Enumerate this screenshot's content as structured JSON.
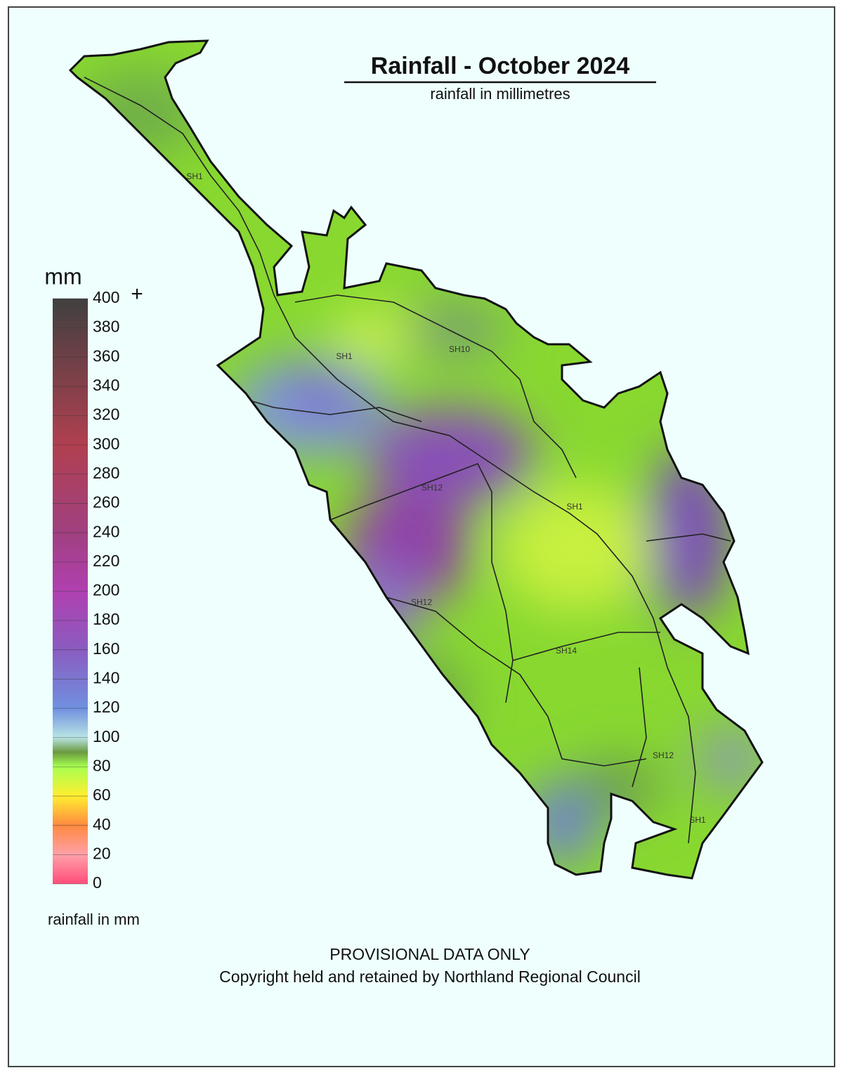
{
  "title": "Rainfall - October 2024",
  "subtitle": "rainfall in millimetres",
  "legend": {
    "unit": "mm",
    "plus": "+",
    "ticks": [
      0,
      20,
      40,
      60,
      80,
      100,
      120,
      140,
      160,
      180,
      200,
      220,
      240,
      260,
      280,
      300,
      320,
      340,
      360,
      380,
      400
    ],
    "caption": "rainfall in mm"
  },
  "road_labels": [
    "SH1",
    "SH1",
    "SH10",
    "SH12",
    "SH1",
    "SH12",
    "SH14",
    "SH12",
    "SH1"
  ],
  "footer": [
    "PROVISIONAL DATA ONLY",
    "Copyright held and retained by Northland Regional Council"
  ]
}
